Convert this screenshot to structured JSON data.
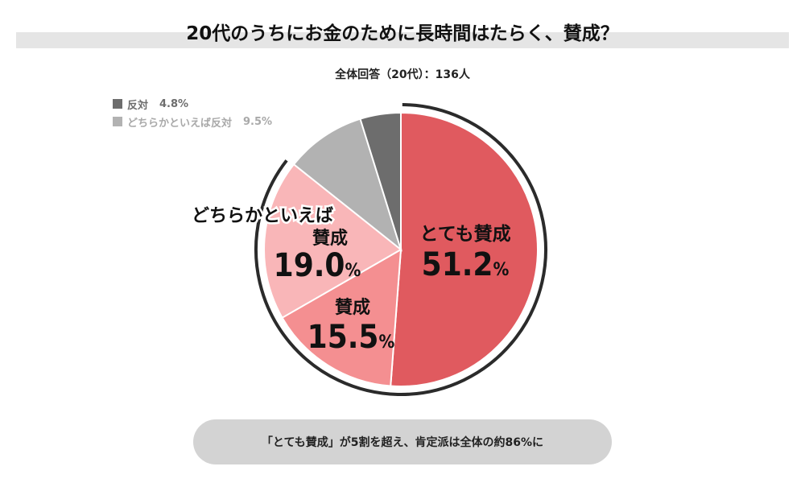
{
  "header": {
    "title": "20代のうちにお金のために長時間はたらく、賛成？",
    "subtitle": "全体回答（20代）：136人"
  },
  "chart_data": {
    "type": "pie",
    "total_n": 136,
    "slices": [
      {
        "label": "とても賛成",
        "value": 51.2,
        "value_text": "51.2",
        "color": "#e05a5f",
        "label_color": "#111111"
      },
      {
        "label": "賛成",
        "value": 15.5,
        "value_text": "15.5",
        "color": "#f48f91",
        "label_color": "#111111"
      },
      {
        "label": "どちらかといえば賛成",
        "value": 19.0,
        "value_text": "19.0",
        "color": "#f9b6b8",
        "label_color": "#111111"
      },
      {
        "label": "どちらかといえば反対",
        "value": 9.5,
        "value_text": "9.5%",
        "color": "#b2b2b2",
        "label_color": "#a9a9a9"
      },
      {
        "label": "反対",
        "value": 4.8,
        "value_text": "4.8%",
        "color": "#6d6d6d",
        "label_color": "#6d6d6d"
      }
    ],
    "percent_sign": "%",
    "outer_arc_color": "#2b2b2b"
  },
  "slice_labels": {
    "totemo_line1": "とても賛成",
    "totemo_value": "51.2",
    "sansei_line1": "賛成",
    "sansei_value": "15.5",
    "dochira_line1": "どちらかといえば",
    "dochira_line2": "賛成",
    "dochira_value": "19.0",
    "pct": "%"
  },
  "legend": [
    {
      "label": "反対",
      "value": "4.8%",
      "color": "#6d6d6d"
    },
    {
      "label": "どちらかといえば反対",
      "value": "9.5%",
      "color": "#b2b2b2"
    }
  ],
  "footer": {
    "note": "「とても賛成」が5割を超え、肯定派は全体の約86%に"
  }
}
